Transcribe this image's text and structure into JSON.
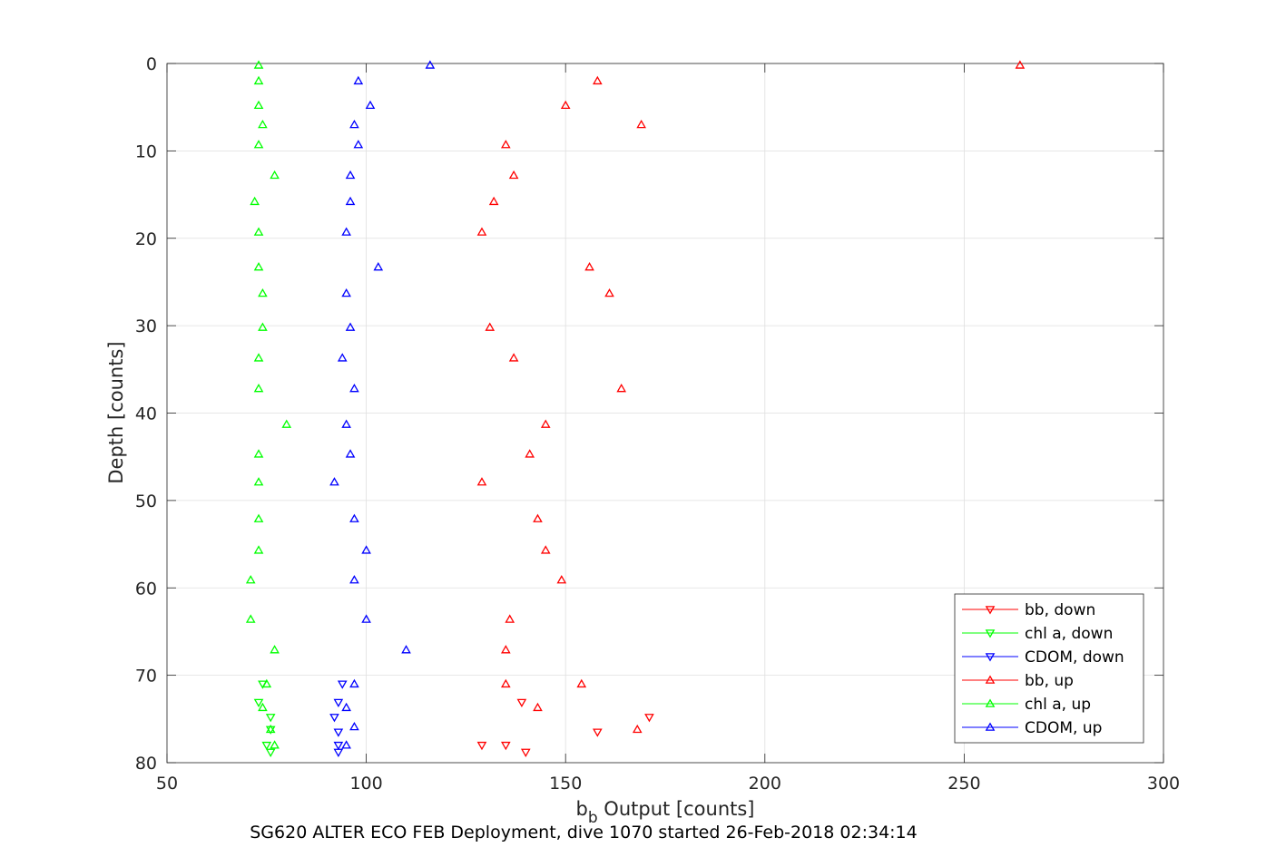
{
  "chart_data": {
    "type": "scatter",
    "caption": "SG620 ALTER ECO FEB Deployment, dive 1070 started 26-Feb-2018 02:34:14",
    "xlabel": "b",
    "xlabel_sub": "b",
    "xlabel_rest": " Output [counts]",
    "ylabel": "Depth [counts]",
    "xlim": [
      50,
      300
    ],
    "ylim": [
      0,
      80
    ],
    "y_reversed": true,
    "grid": true,
    "legend_position": "bottom-right",
    "xticks": [
      50,
      100,
      150,
      200,
      250,
      300
    ],
    "yticks": [
      0,
      10,
      20,
      30,
      40,
      50,
      60,
      70,
      80
    ],
    "series": [
      {
        "name": "bb, down",
        "color": "#ff0000",
        "marker": "down",
        "points": [
          [
            139,
            73.1
          ],
          [
            171,
            74.8
          ],
          [
            158,
            76.5
          ],
          [
            129,
            78.0
          ],
          [
            135,
            78.0
          ],
          [
            140,
            78.8
          ]
        ]
      },
      {
        "name": "chl a, down",
        "color": "#00ff00",
        "marker": "down",
        "points": [
          [
            74,
            71.0
          ],
          [
            73,
            73.1
          ],
          [
            76,
            74.8
          ],
          [
            76,
            76.2
          ],
          [
            75,
            78.0
          ],
          [
            76,
            78.8
          ]
        ]
      },
      {
        "name": "CDOM, down",
        "color": "#0000ff",
        "marker": "down",
        "points": [
          [
            94,
            71.0
          ],
          [
            93,
            73.1
          ],
          [
            92,
            74.8
          ],
          [
            93,
            76.5
          ],
          [
            93,
            78.0
          ],
          [
            93,
            78.8
          ]
        ]
      },
      {
        "name": "bb, up",
        "color": "#ff0000",
        "marker": "up",
        "points": [
          [
            264,
            0.2
          ],
          [
            158,
            2.0
          ],
          [
            150,
            4.8
          ],
          [
            169,
            7.0
          ],
          [
            135,
            9.3
          ],
          [
            137,
            12.8
          ],
          [
            132,
            15.8
          ],
          [
            129,
            19.3
          ],
          [
            156,
            23.3
          ],
          [
            161,
            26.3
          ],
          [
            131,
            30.2
          ],
          [
            137,
            33.7
          ],
          [
            164,
            37.2
          ],
          [
            145,
            41.3
          ],
          [
            141,
            44.7
          ],
          [
            129,
            47.9
          ],
          [
            143,
            52.1
          ],
          [
            145,
            55.7
          ],
          [
            149,
            59.1
          ],
          [
            136,
            63.6
          ],
          [
            135,
            67.1
          ],
          [
            135,
            71.0
          ],
          [
            154,
            71.0
          ],
          [
            143,
            73.7
          ],
          [
            168,
            76.2
          ]
        ]
      },
      {
        "name": "chl a, up",
        "color": "#00ff00",
        "marker": "up",
        "points": [
          [
            73,
            0.2
          ],
          [
            73,
            2.0
          ],
          [
            73,
            4.8
          ],
          [
            74,
            7.0
          ],
          [
            73,
            9.3
          ],
          [
            77,
            12.8
          ],
          [
            72,
            15.8
          ],
          [
            73,
            19.3
          ],
          [
            73,
            23.3
          ],
          [
            74,
            26.3
          ],
          [
            74,
            30.2
          ],
          [
            73,
            33.7
          ],
          [
            73,
            37.2
          ],
          [
            80,
            41.3
          ],
          [
            73,
            44.7
          ],
          [
            73,
            47.9
          ],
          [
            73,
            52.1
          ],
          [
            73,
            55.7
          ],
          [
            71,
            59.1
          ],
          [
            71,
            63.6
          ],
          [
            77,
            67.1
          ],
          [
            75,
            71.0
          ],
          [
            74,
            73.7
          ],
          [
            76,
            76.2
          ],
          [
            77,
            78.0
          ]
        ]
      },
      {
        "name": "CDOM, up",
        "color": "#0000ff",
        "marker": "up",
        "points": [
          [
            116,
            0.2
          ],
          [
            98,
            2.0
          ],
          [
            101,
            4.8
          ],
          [
            97,
            7.0
          ],
          [
            98,
            9.3
          ],
          [
            96,
            12.8
          ],
          [
            96,
            15.8
          ],
          [
            95,
            19.3
          ],
          [
            103,
            23.3
          ],
          [
            95,
            26.3
          ],
          [
            96,
            30.2
          ],
          [
            94,
            33.7
          ],
          [
            97,
            37.2
          ],
          [
            95,
            41.3
          ],
          [
            96,
            44.7
          ],
          [
            92,
            47.9
          ],
          [
            97,
            52.1
          ],
          [
            100,
            55.7
          ],
          [
            97,
            59.1
          ],
          [
            100,
            63.6
          ],
          [
            110,
            67.1
          ],
          [
            97,
            71.0
          ],
          [
            95,
            73.7
          ],
          [
            97,
            75.9
          ],
          [
            95,
            78.0
          ]
        ]
      }
    ]
  }
}
